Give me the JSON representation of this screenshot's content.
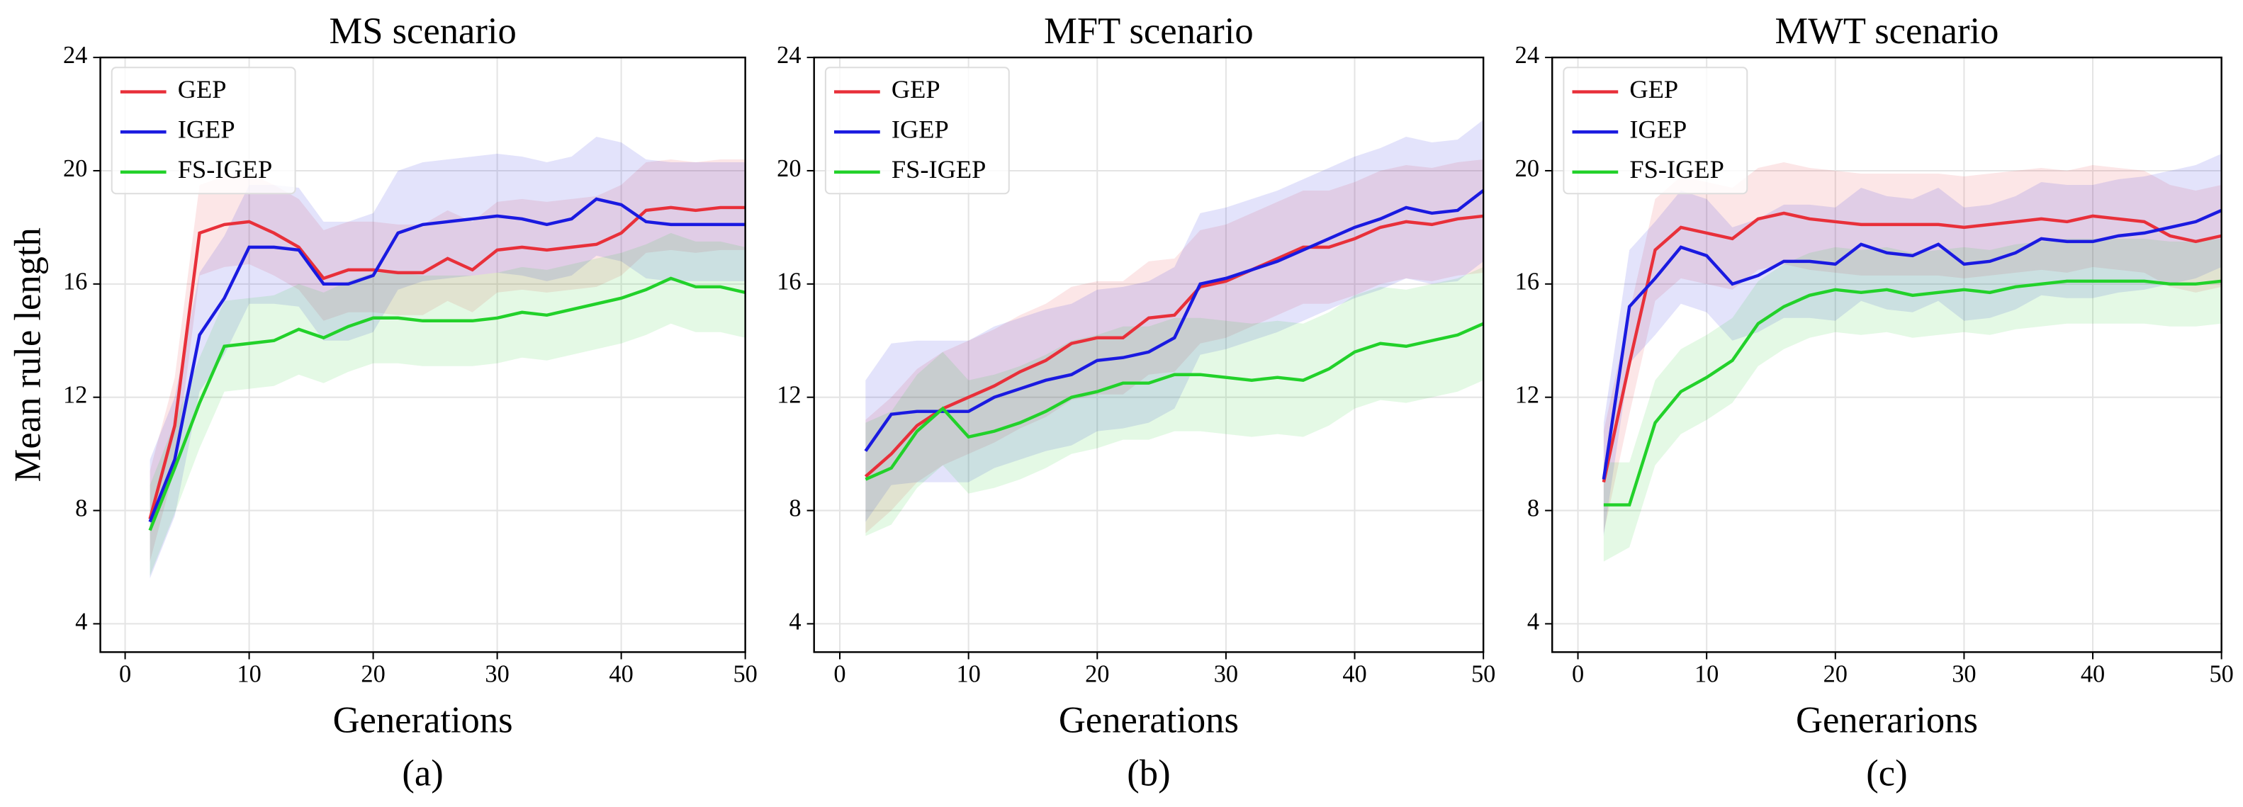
{
  "chart_data": [
    {
      "type": "line",
      "title": "MS scenario",
      "subtitle": "(a)",
      "x_label": "Generations",
      "y_label": "Mean rule length",
      "x": [
        2,
        4,
        6,
        8,
        10,
        12,
        14,
        16,
        18,
        20,
        22,
        24,
        26,
        28,
        30,
        32,
        34,
        36,
        38,
        40,
        42,
        44,
        46,
        48,
        50
      ],
      "series": [
        {
          "name": "GEP",
          "color": "#e8303a",
          "values": [
            7.7,
            11,
            17.8,
            18.1,
            18.2,
            17.8,
            17.3,
            16.2,
            16.5,
            16.5,
            16.4,
            16.4,
            16.9,
            16.5,
            17.2,
            17.3,
            17.2,
            17.3,
            17.4,
            17.8,
            18.6,
            18.7,
            18.6,
            18.7,
            18.7
          ],
          "lower": [
            6.2,
            9.5,
            16.3,
            16.6,
            16.7,
            16.3,
            15.8,
            14.7,
            15.0,
            15.0,
            14.9,
            14.9,
            15.4,
            15.0,
            15.7,
            15.8,
            15.7,
            15.8,
            15.9,
            16.3,
            17.1,
            17.2,
            17.1,
            17.2,
            17.2
          ],
          "upper": [
            9.4,
            12.7,
            19.5,
            19.8,
            19.9,
            19.5,
            19.0,
            17.9,
            18.2,
            18.2,
            18.1,
            18.1,
            18.6,
            18.2,
            18.9,
            19.0,
            18.9,
            19.0,
            19.1,
            19.5,
            20.3,
            20.4,
            20.3,
            20.4,
            20.4
          ]
        },
        {
          "name": "IGEP",
          "color": "#1a1ae0",
          "values": [
            7.6,
            9.8,
            14.2,
            15.5,
            17.3,
            17.3,
            17.2,
            16.0,
            16.0,
            16.3,
            17.8,
            18.1,
            18.2,
            18.3,
            18.4,
            18.3,
            18.1,
            18.3,
            19.0,
            18.8,
            18.2,
            18.1,
            18.1,
            18.1,
            18.1
          ],
          "lower": [
            5.6,
            7.8,
            12.2,
            13.5,
            15.3,
            15.3,
            15.2,
            14.0,
            14.0,
            14.3,
            15.8,
            16.1,
            16.2,
            16.3,
            16.4,
            16.3,
            16.1,
            16.3,
            17.0,
            16.8,
            16.2,
            16.1,
            16.1,
            16.1,
            16.1
          ],
          "upper": [
            9.8,
            12.0,
            16.4,
            17.7,
            19.5,
            19.5,
            19.4,
            18.2,
            18.2,
            18.5,
            20.0,
            20.3,
            20.4,
            20.5,
            20.6,
            20.5,
            20.3,
            20.5,
            21.2,
            21.0,
            20.4,
            20.3,
            20.3,
            20.3,
            20.3
          ]
        },
        {
          "name": "FS-IGEP",
          "color": "#22d12a",
          "values": [
            7.3,
            9.5,
            11.8,
            13.8,
            13.9,
            14.0,
            14.4,
            14.1,
            14.5,
            14.8,
            14.8,
            14.7,
            14.7,
            14.7,
            14.8,
            15.0,
            14.9,
            15.1,
            15.3,
            15.5,
            15.8,
            16.2,
            15.9,
            15.9,
            15.7
          ],
          "lower": [
            5.7,
            7.9,
            10.2,
            12.2,
            12.3,
            12.4,
            12.8,
            12.5,
            12.9,
            13.2,
            13.2,
            13.1,
            13.1,
            13.1,
            13.2,
            13.4,
            13.3,
            13.5,
            13.7,
            13.9,
            14.2,
            14.6,
            14.3,
            14.3,
            14.1
          ],
          "upper": [
            8.9,
            11.1,
            13.4,
            15.4,
            15.5,
            15.6,
            16.0,
            15.7,
            16.1,
            16.4,
            16.4,
            16.3,
            16.3,
            16.3,
            16.4,
            16.6,
            16.5,
            16.7,
            16.9,
            17.1,
            17.4,
            17.8,
            17.5,
            17.5,
            17.3
          ]
        }
      ],
      "xlim": [
        -2,
        50
      ],
      "ylim": [
        3,
        24
      ],
      "xticks": [
        0,
        10,
        20,
        30,
        40,
        50
      ],
      "yticks": [
        4,
        8,
        12,
        16,
        20,
        24
      ],
      "grid": true,
      "legend": "upper left"
    },
    {
      "type": "line",
      "title": "MFT scenario",
      "subtitle": "(b)",
      "x_label": "Generations",
      "x": [
        2,
        4,
        6,
        8,
        10,
        12,
        14,
        16,
        18,
        20,
        22,
        24,
        26,
        28,
        30,
        32,
        34,
        36,
        38,
        40,
        42,
        44,
        46,
        48,
        50
      ],
      "series": [
        {
          "name": "GEP",
          "color": "#e8303a",
          "values": [
            9.2,
            10.0,
            11.0,
            11.6,
            12.0,
            12.4,
            12.9,
            13.3,
            13.9,
            14.1,
            14.1,
            14.8,
            14.9,
            15.9,
            16.1,
            16.5,
            16.9,
            17.3,
            17.3,
            17.6,
            18.0,
            18.2,
            18.1,
            18.3,
            18.4
          ],
          "lower": [
            7.2,
            8.0,
            9.0,
            9.6,
            10.0,
            10.4,
            10.9,
            11.3,
            11.9,
            12.1,
            12.1,
            12.8,
            12.9,
            13.9,
            14.1,
            14.5,
            14.9,
            15.3,
            15.3,
            15.6,
            16.0,
            16.2,
            16.1,
            16.3,
            16.4
          ],
          "upper": [
            11.2,
            12.0,
            13.0,
            13.6,
            14.0,
            14.4,
            14.9,
            15.3,
            15.9,
            16.1,
            16.1,
            16.8,
            16.9,
            17.9,
            18.1,
            18.5,
            18.9,
            19.3,
            19.3,
            19.6,
            20.0,
            20.2,
            20.1,
            20.3,
            20.4
          ]
        },
        {
          "name": "IGEP",
          "color": "#1a1ae0",
          "values": [
            10.1,
            11.4,
            11.5,
            11.5,
            11.5,
            12.0,
            12.3,
            12.6,
            12.8,
            13.3,
            13.4,
            13.6,
            14.1,
            16.0,
            16.2,
            16.5,
            16.8,
            17.2,
            17.6,
            18.0,
            18.3,
            18.7,
            18.5,
            18.6,
            19.3
          ],
          "lower": [
            7.6,
            8.9,
            9.0,
            9.0,
            9.0,
            9.5,
            9.8,
            10.1,
            10.3,
            10.8,
            10.9,
            11.1,
            11.6,
            13.5,
            13.7,
            14.0,
            14.3,
            14.7,
            15.1,
            15.5,
            15.8,
            16.2,
            16.0,
            16.1,
            16.8
          ],
          "upper": [
            12.6,
            13.9,
            14.0,
            14.0,
            14.0,
            14.5,
            14.8,
            15.1,
            15.3,
            15.8,
            15.9,
            16.1,
            16.6,
            18.5,
            18.7,
            19.0,
            19.3,
            19.7,
            20.1,
            20.5,
            20.8,
            21.2,
            21.0,
            21.1,
            21.8
          ]
        },
        {
          "name": "FS-IGEP",
          "color": "#22d12a",
          "values": [
            9.1,
            9.5,
            10.8,
            11.6,
            10.6,
            10.8,
            11.1,
            11.5,
            12.0,
            12.2,
            12.5,
            12.5,
            12.8,
            12.8,
            12.7,
            12.6,
            12.7,
            12.6,
            13.0,
            13.6,
            13.9,
            13.8,
            14.0,
            14.2,
            14.6
          ],
          "lower": [
            7.1,
            7.5,
            8.8,
            9.6,
            8.6,
            8.8,
            9.1,
            9.5,
            10.0,
            10.2,
            10.5,
            10.5,
            10.8,
            10.8,
            10.7,
            10.6,
            10.7,
            10.6,
            11.0,
            11.6,
            11.9,
            11.8,
            12.0,
            12.2,
            12.6
          ],
          "upper": [
            11.1,
            11.5,
            12.8,
            13.6,
            12.6,
            12.8,
            13.1,
            13.5,
            14.0,
            14.2,
            14.5,
            14.5,
            14.8,
            14.8,
            14.7,
            14.6,
            14.7,
            14.6,
            15.0,
            15.6,
            15.9,
            15.8,
            16.0,
            16.2,
            16.6
          ]
        }
      ],
      "xlim": [
        -2,
        50
      ],
      "ylim": [
        3,
        24
      ],
      "xticks": [
        0,
        10,
        20,
        30,
        40,
        50
      ],
      "yticks": [
        4,
        8,
        12,
        16,
        20,
        24
      ],
      "grid": true,
      "legend": "upper left"
    },
    {
      "type": "line",
      "title": "MWT scenario",
      "subtitle": "(c)",
      "x_label": "Generarions",
      "x": [
        2,
        4,
        6,
        8,
        10,
        12,
        14,
        16,
        18,
        20,
        22,
        24,
        26,
        28,
        30,
        32,
        34,
        36,
        38,
        40,
        42,
        44,
        46,
        48,
        50
      ],
      "series": [
        {
          "name": "GEP",
          "color": "#e8303a",
          "values": [
            9.0,
            13.2,
            17.2,
            18.0,
            17.8,
            17.6,
            18.3,
            18.5,
            18.3,
            18.2,
            18.1,
            18.1,
            18.1,
            18.1,
            18.0,
            18.1,
            18.2,
            18.3,
            18.2,
            18.4,
            18.3,
            18.2,
            17.7,
            17.5,
            17.7
          ],
          "lower": [
            7.2,
            11.4,
            15.4,
            16.2,
            16.0,
            15.8,
            16.5,
            16.7,
            16.5,
            16.4,
            16.3,
            16.3,
            16.3,
            16.3,
            16.2,
            16.3,
            16.4,
            16.5,
            16.4,
            16.6,
            16.5,
            16.4,
            15.9,
            15.7,
            15.9
          ],
          "upper": [
            10.8,
            15.0,
            19.0,
            19.8,
            19.6,
            19.4,
            20.1,
            20.3,
            20.1,
            20.0,
            19.9,
            19.9,
            19.9,
            19.9,
            19.8,
            19.9,
            20.0,
            20.1,
            20.0,
            20.2,
            20.1,
            20.0,
            19.5,
            19.3,
            19.5
          ]
        },
        {
          "name": "IGEP",
          "color": "#1a1ae0",
          "values": [
            9.1,
            15.2,
            16.2,
            17.3,
            17.0,
            16.0,
            16.3,
            16.8,
            16.8,
            16.7,
            17.4,
            17.1,
            17.0,
            17.4,
            16.7,
            16.8,
            17.1,
            17.6,
            17.5,
            17.5,
            17.7,
            17.8,
            18.0,
            18.2,
            18.6
          ],
          "lower": [
            7.1,
            13.2,
            14.2,
            15.3,
            15.0,
            14.0,
            14.3,
            14.8,
            14.8,
            14.7,
            15.4,
            15.1,
            15.0,
            15.4,
            14.7,
            14.8,
            15.1,
            15.6,
            15.5,
            15.5,
            15.7,
            15.8,
            16.0,
            16.2,
            16.6
          ],
          "upper": [
            11.1,
            17.2,
            18.2,
            19.3,
            19.0,
            18.0,
            18.3,
            18.8,
            18.8,
            18.7,
            19.4,
            19.1,
            19.0,
            19.4,
            18.7,
            18.8,
            19.1,
            19.6,
            19.5,
            19.5,
            19.7,
            19.8,
            20.0,
            20.2,
            20.6
          ]
        },
        {
          "name": "FS-IGEP",
          "color": "#22d12a",
          "values": [
            8.2,
            8.2,
            11.1,
            12.2,
            12.7,
            13.3,
            14.6,
            15.2,
            15.6,
            15.8,
            15.7,
            15.8,
            15.6,
            15.7,
            15.8,
            15.7,
            15.9,
            16.0,
            16.1,
            16.1,
            16.1,
            16.1,
            16.0,
            16.0,
            16.1
          ],
          "lower": [
            6.2,
            6.7,
            9.6,
            10.7,
            11.2,
            11.8,
            13.1,
            13.7,
            14.1,
            14.3,
            14.2,
            14.3,
            14.1,
            14.2,
            14.3,
            14.2,
            14.4,
            14.5,
            14.6,
            14.6,
            14.6,
            14.6,
            14.5,
            14.5,
            14.6
          ],
          "upper": [
            9.7,
            9.7,
            12.6,
            13.7,
            14.2,
            14.8,
            16.1,
            16.7,
            17.1,
            17.3,
            17.2,
            17.3,
            17.1,
            17.2,
            17.3,
            17.2,
            17.4,
            17.5,
            17.6,
            17.6,
            17.6,
            17.6,
            17.5,
            17.5,
            17.6
          ]
        }
      ],
      "xlim": [
        -2,
        50
      ],
      "ylim": [
        3,
        24
      ],
      "xticks": [
        0,
        10,
        20,
        30,
        40,
        50
      ],
      "yticks": [
        4,
        8,
        12,
        16,
        20,
        24
      ],
      "grid": true,
      "legend": "upper left"
    }
  ]
}
